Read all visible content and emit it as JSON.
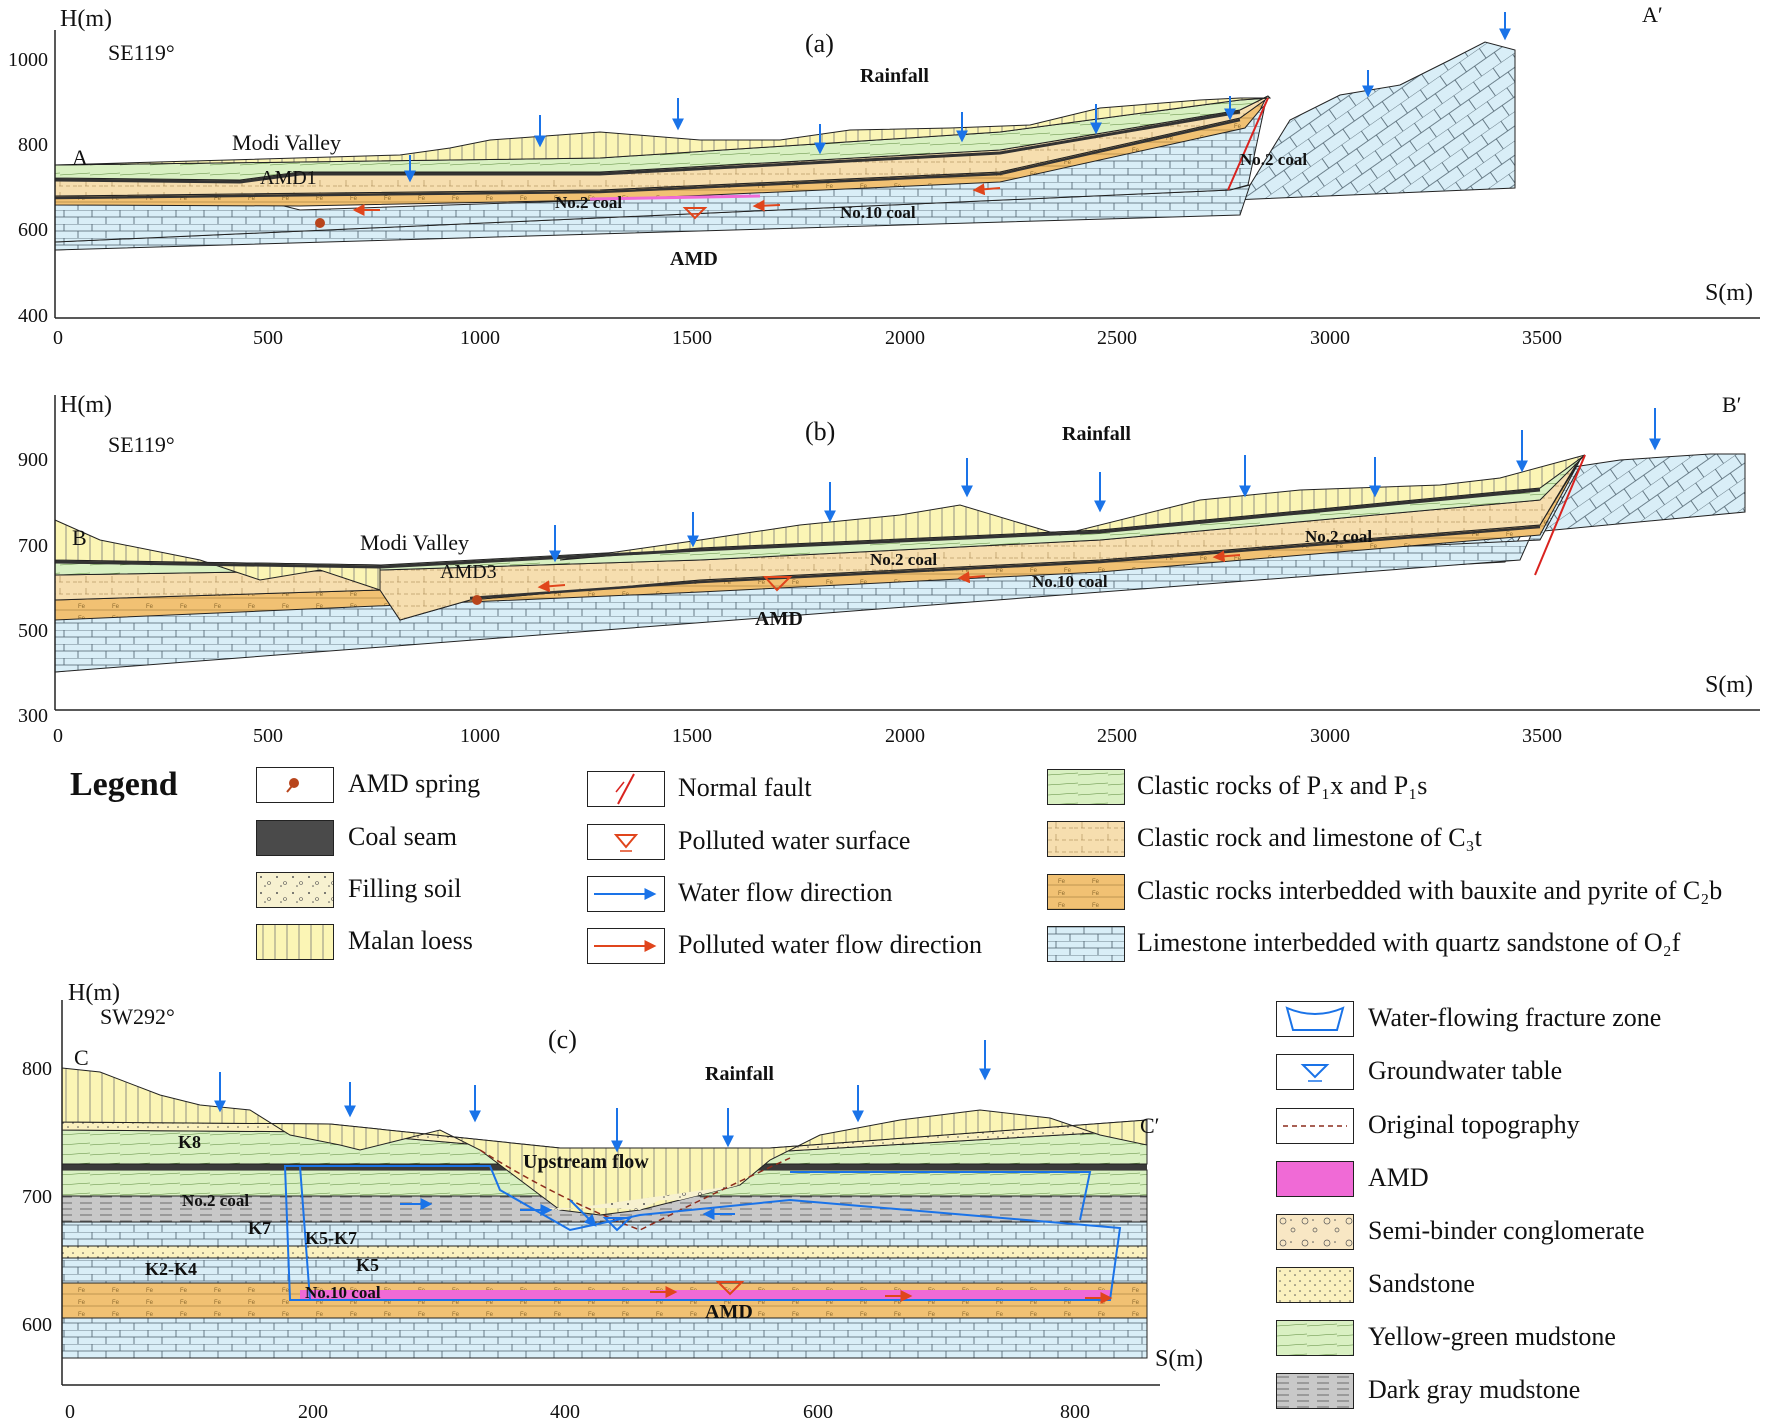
{
  "panels": [
    {
      "id": "a",
      "panel_label": "(a)",
      "y_axis_label": "H(m)",
      "x_axis_label": "S(m)",
      "direction": "SE119°",
      "start_label": "A",
      "end_label": "A′",
      "y_ticks": [
        "400",
        "600",
        "800",
        "1000"
      ],
      "x_ticks": [
        "0",
        "500",
        "1000",
        "1500",
        "2000",
        "2500",
        "3000",
        "3500"
      ],
      "rainfall": "Rainfall",
      "valley": "Modi Valley",
      "spring": "AMD1",
      "coal_upper": "No.2 coal",
      "coal_upper_2": "No.2 coal",
      "coal_lower": "No.10 coal",
      "amd": "AMD"
    },
    {
      "id": "b",
      "panel_label": "(b)",
      "y_axis_label": "H(m)",
      "x_axis_label": "S(m)",
      "direction": "SE119°",
      "start_label": "B",
      "end_label": "B′",
      "y_ticks": [
        "300",
        "500",
        "700",
        "900"
      ],
      "x_ticks": [
        "0",
        "500",
        "1000",
        "1500",
        "2000",
        "2500",
        "3000",
        "3500"
      ],
      "rainfall": "Rainfall",
      "valley": "Modi Valley",
      "spring": "AMD3",
      "coal_upper": "No.2 coal",
      "coal_upper_2": "No.2 coal",
      "coal_lower": "No.10 coal",
      "amd": "AMD"
    },
    {
      "id": "c",
      "panel_label": "(c)",
      "y_axis_label": "H(m)",
      "x_axis_label": "S(m)",
      "direction": "SW292°",
      "start_label": "C",
      "end_label": "C′",
      "y_ticks": [
        "600",
        "700",
        "800"
      ],
      "x_ticks": [
        "0",
        "200",
        "400",
        "600",
        "800"
      ],
      "rainfall": "Rainfall",
      "upstream": "Upstream flow",
      "coal_upper": "No.2 coal",
      "coal_lower": "No.10 coal",
      "amd": "AMD",
      "key_beds": [
        "K8",
        "K7",
        "K5-K7",
        "K5",
        "K2-K4"
      ]
    }
  ],
  "legend": {
    "title": "Legend",
    "col1": [
      {
        "label": "AMD spring",
        "swatch": "spring"
      },
      {
        "label": "Coal seam",
        "swatch": "coal"
      },
      {
        "label": "Filling soil",
        "swatch": "fill"
      },
      {
        "label": "Malan loess",
        "swatch": "loess"
      }
    ],
    "col2": [
      {
        "label": "Normal fault",
        "swatch": "fault"
      },
      {
        "label": "Polluted water surface",
        "swatch": "pws"
      },
      {
        "label": "Water flow direction",
        "swatch": "wflow"
      },
      {
        "label": "Polluted water flow direction",
        "swatch": "pflow"
      }
    ],
    "col3": [
      {
        "label": "Clastic rocks of P₁x and P₁s",
        "swatch": "green"
      },
      {
        "label": "Clastic rock and limestone of C₃t",
        "swatch": "tan"
      },
      {
        "label": "Clastic rocks interbedded with bauxite and pyrite of C₂b",
        "swatch": "orange"
      },
      {
        "label": "Limestone interbedded with quartz sandstone of O₂f",
        "swatch": "limestone"
      }
    ],
    "col4": [
      {
        "label": "Water-flowing fracture zone",
        "swatch": "fracture"
      },
      {
        "label": "Groundwater table",
        "swatch": "gwt"
      },
      {
        "label": "Original topography",
        "swatch": "orig"
      },
      {
        "label": "AMD",
        "swatch": "amd"
      },
      {
        "label": "Semi-binder conglomerate",
        "swatch": "conglom"
      },
      {
        "label": "Sandstone",
        "swatch": "sand"
      },
      {
        "label": "Yellow-green mudstone",
        "swatch": "green"
      },
      {
        "label": "Dark gray mudstone",
        "swatch": "darkgray"
      }
    ]
  },
  "colors": {
    "loess": "#fbf5b5",
    "green": "#d9f0c2",
    "tan": "#f6deaf",
    "orange": "#f1c173",
    "limestone": "#d9eef7",
    "coal": "#4a4a4a",
    "amd": "#f06ad6",
    "blue_arrow": "#1a73e8",
    "red_arrow": "#e0451c",
    "fault": "#d9231f",
    "darkgray": "#c8c8c8",
    "sand": "#fbf1bf"
  }
}
